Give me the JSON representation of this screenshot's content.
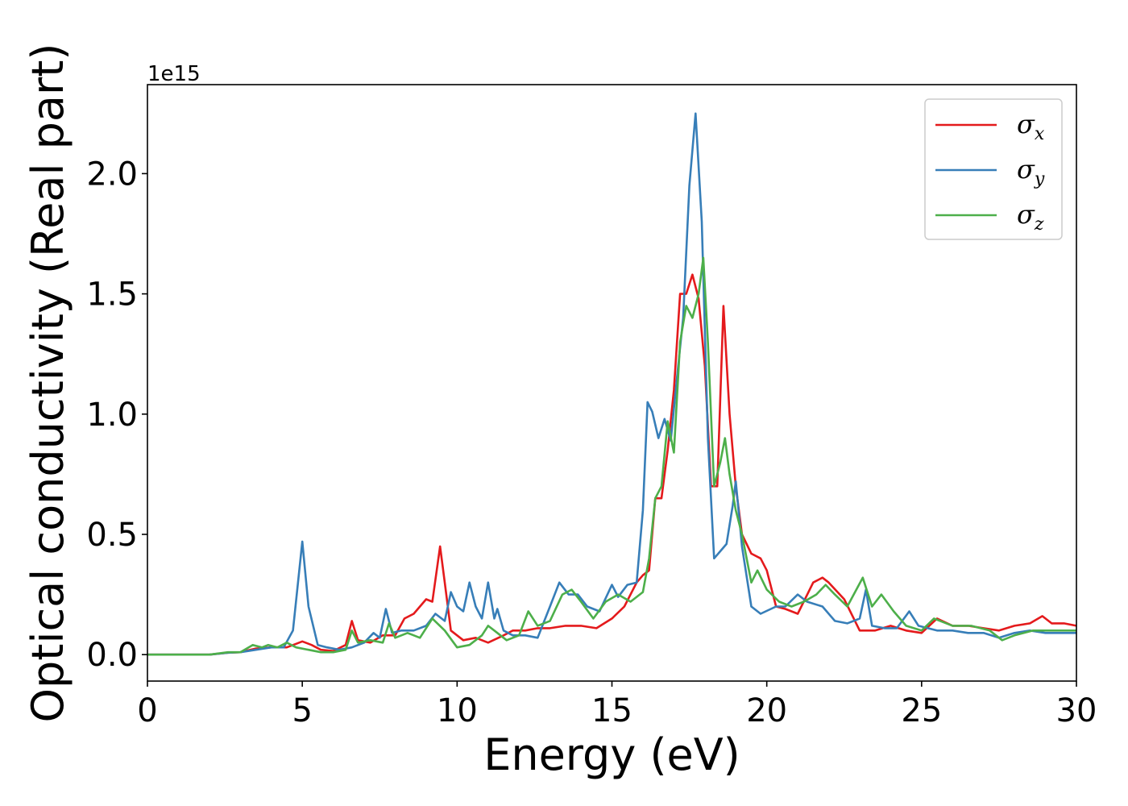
{
  "chart_data": {
    "type": "line",
    "xlabel": "Energy (eV)",
    "ylabel": "Optical conductivity (Real part)",
    "y_offset_text": "1e15",
    "xlim": [
      0,
      30
    ],
    "ylim": [
      -0.11,
      2.37
    ],
    "x_ticks": [
      0,
      5,
      10,
      15,
      20,
      25,
      30
    ],
    "y_ticks": [
      0.0,
      0.5,
      1.0,
      1.5,
      2.0
    ],
    "x_tick_labels": [
      "0",
      "5",
      "10",
      "15",
      "20",
      "25",
      "30"
    ],
    "y_tick_labels": [
      "0.0",
      "0.5",
      "1.0",
      "1.5",
      "2.0"
    ],
    "grid": false,
    "legend_position": "top-right",
    "series": [
      {
        "name": "σ_x",
        "legend_base": "σ",
        "legend_sub": "x",
        "color": "#e41a1c",
        "points": [
          [
            0,
            0
          ],
          [
            2,
            0
          ],
          [
            2.6,
            0.008
          ],
          [
            3,
            0.01
          ],
          [
            3.5,
            0.025
          ],
          [
            4,
            0.03
          ],
          [
            4.5,
            0.03
          ],
          [
            4.8,
            0.045
          ],
          [
            5.0,
            0.055
          ],
          [
            5.3,
            0.04
          ],
          [
            5.6,
            0.02
          ],
          [
            6,
            0.015
          ],
          [
            6.4,
            0.04
          ],
          [
            6.6,
            0.14
          ],
          [
            6.8,
            0.06
          ],
          [
            7.2,
            0.05
          ],
          [
            7.6,
            0.08
          ],
          [
            8,
            0.08
          ],
          [
            8.3,
            0.15
          ],
          [
            8.6,
            0.17
          ],
          [
            9,
            0.23
          ],
          [
            9.2,
            0.22
          ],
          [
            9.45,
            0.45
          ],
          [
            9.6,
            0.3
          ],
          [
            9.8,
            0.1
          ],
          [
            10.2,
            0.06
          ],
          [
            10.6,
            0.07
          ],
          [
            11,
            0.05
          ],
          [
            11.5,
            0.08
          ],
          [
            11.8,
            0.1
          ],
          [
            12.2,
            0.1
          ],
          [
            12.6,
            0.11
          ],
          [
            13,
            0.11
          ],
          [
            13.5,
            0.12
          ],
          [
            14,
            0.12
          ],
          [
            14.5,
            0.11
          ],
          [
            15,
            0.15
          ],
          [
            15.4,
            0.2
          ],
          [
            15.8,
            0.3
          ],
          [
            16.0,
            0.33
          ],
          [
            16.2,
            0.35
          ],
          [
            16.4,
            0.65
          ],
          [
            16.6,
            0.65
          ],
          [
            16.8,
            0.85
          ],
          [
            17.0,
            1.1
          ],
          [
            17.2,
            1.5
          ],
          [
            17.4,
            1.5
          ],
          [
            17.6,
            1.58
          ],
          [
            17.8,
            1.48
          ],
          [
            18.0,
            1.2
          ],
          [
            18.2,
            0.7
          ],
          [
            18.4,
            0.7
          ],
          [
            18.6,
            1.45
          ],
          [
            18.8,
            1.0
          ],
          [
            19.0,
            0.7
          ],
          [
            19.2,
            0.5
          ],
          [
            19.5,
            0.42
          ],
          [
            19.8,
            0.4
          ],
          [
            20,
            0.35
          ],
          [
            20.3,
            0.2
          ],
          [
            20.6,
            0.19
          ],
          [
            21,
            0.17
          ],
          [
            21.5,
            0.3
          ],
          [
            21.8,
            0.32
          ],
          [
            22,
            0.3
          ],
          [
            22.5,
            0.23
          ],
          [
            23,
            0.1
          ],
          [
            23.5,
            0.1
          ],
          [
            24,
            0.12
          ],
          [
            24.5,
            0.1
          ],
          [
            25,
            0.09
          ],
          [
            25.5,
            0.15
          ],
          [
            26,
            0.12
          ],
          [
            26.5,
            0.12
          ],
          [
            27,
            0.11
          ],
          [
            27.5,
            0.1
          ],
          [
            28,
            0.12
          ],
          [
            28.5,
            0.13
          ],
          [
            28.9,
            0.16
          ],
          [
            29.2,
            0.13
          ],
          [
            29.6,
            0.13
          ],
          [
            30,
            0.12
          ]
        ]
      },
      {
        "name": "σ_y",
        "legend_base": "σ",
        "legend_sub": "y",
        "color": "#377eb8",
        "points": [
          [
            0,
            0
          ],
          [
            2,
            0
          ],
          [
            2.6,
            0.008
          ],
          [
            3,
            0.01
          ],
          [
            3.5,
            0.02
          ],
          [
            4,
            0.03
          ],
          [
            4.4,
            0.03
          ],
          [
            4.7,
            0.1
          ],
          [
            5.0,
            0.47
          ],
          [
            5.2,
            0.2
          ],
          [
            5.5,
            0.04
          ],
          [
            5.8,
            0.03
          ],
          [
            6.2,
            0.02
          ],
          [
            6.6,
            0.03
          ],
          [
            7,
            0.05
          ],
          [
            7.3,
            0.09
          ],
          [
            7.5,
            0.07
          ],
          [
            7.7,
            0.19
          ],
          [
            7.9,
            0.09
          ],
          [
            8.2,
            0.1
          ],
          [
            8.6,
            0.1
          ],
          [
            9,
            0.12
          ],
          [
            9.3,
            0.17
          ],
          [
            9.6,
            0.14
          ],
          [
            9.8,
            0.26
          ],
          [
            10.0,
            0.2
          ],
          [
            10.2,
            0.18
          ],
          [
            10.4,
            0.3
          ],
          [
            10.6,
            0.2
          ],
          [
            10.8,
            0.15
          ],
          [
            11.0,
            0.3
          ],
          [
            11.2,
            0.15
          ],
          [
            11.3,
            0.19
          ],
          [
            11.5,
            0.1
          ],
          [
            11.8,
            0.08
          ],
          [
            12.2,
            0.08
          ],
          [
            12.6,
            0.07
          ],
          [
            13,
            0.2
          ],
          [
            13.3,
            0.3
          ],
          [
            13.6,
            0.25
          ],
          [
            13.9,
            0.25
          ],
          [
            14.2,
            0.2
          ],
          [
            14.6,
            0.18
          ],
          [
            15,
            0.29
          ],
          [
            15.2,
            0.24
          ],
          [
            15.5,
            0.29
          ],
          [
            15.8,
            0.3
          ],
          [
            16.0,
            0.6
          ],
          [
            16.15,
            1.05
          ],
          [
            16.3,
            1.01
          ],
          [
            16.5,
            0.9
          ],
          [
            16.7,
            0.98
          ],
          [
            16.9,
            0.89
          ],
          [
            17.1,
            1.15
          ],
          [
            17.3,
            1.4
          ],
          [
            17.5,
            1.95
          ],
          [
            17.7,
            2.25
          ],
          [
            17.9,
            1.8
          ],
          [
            18.1,
            0.9
          ],
          [
            18.3,
            0.4
          ],
          [
            18.5,
            0.43
          ],
          [
            18.7,
            0.46
          ],
          [
            18.9,
            0.62
          ],
          [
            19.0,
            0.72
          ],
          [
            19.2,
            0.45
          ],
          [
            19.5,
            0.2
          ],
          [
            19.8,
            0.17
          ],
          [
            20.3,
            0.2
          ],
          [
            20.6,
            0.2
          ],
          [
            21,
            0.25
          ],
          [
            21.3,
            0.22
          ],
          [
            21.8,
            0.2
          ],
          [
            22.2,
            0.14
          ],
          [
            22.6,
            0.13
          ],
          [
            23,
            0.15
          ],
          [
            23.2,
            0.27
          ],
          [
            23.4,
            0.12
          ],
          [
            23.8,
            0.11
          ],
          [
            24.2,
            0.11
          ],
          [
            24.6,
            0.18
          ],
          [
            24.9,
            0.12
          ],
          [
            25.5,
            0.1
          ],
          [
            26,
            0.1
          ],
          [
            26.5,
            0.09
          ],
          [
            27,
            0.09
          ],
          [
            27.5,
            0.07
          ],
          [
            28,
            0.09
          ],
          [
            28.5,
            0.1
          ],
          [
            29,
            0.09
          ],
          [
            29.5,
            0.09
          ],
          [
            30,
            0.09
          ]
        ]
      },
      {
        "name": "σ_z",
        "legend_base": "σ",
        "legend_sub": "z",
        "color": "#4daf4a",
        "points": [
          [
            0,
            0
          ],
          [
            2,
            0
          ],
          [
            2.6,
            0.01
          ],
          [
            3,
            0.01
          ],
          [
            3.4,
            0.04
          ],
          [
            3.7,
            0.03
          ],
          [
            3.9,
            0.04
          ],
          [
            4.2,
            0.03
          ],
          [
            4.5,
            0.05
          ],
          [
            4.8,
            0.03
          ],
          [
            5.2,
            0.02
          ],
          [
            5.6,
            0.01
          ],
          [
            6,
            0.01
          ],
          [
            6.4,
            0.02
          ],
          [
            6.6,
            0.1
          ],
          [
            6.8,
            0.05
          ],
          [
            7.2,
            0.06
          ],
          [
            7.6,
            0.05
          ],
          [
            7.8,
            0.13
          ],
          [
            8,
            0.07
          ],
          [
            8.4,
            0.09
          ],
          [
            8.8,
            0.07
          ],
          [
            9.2,
            0.15
          ],
          [
            9.6,
            0.1
          ],
          [
            10,
            0.03
          ],
          [
            10.4,
            0.04
          ],
          [
            10.8,
            0.08
          ],
          [
            11,
            0.12
          ],
          [
            11.2,
            0.1
          ],
          [
            11.6,
            0.06
          ],
          [
            12,
            0.08
          ],
          [
            12.3,
            0.18
          ],
          [
            12.6,
            0.12
          ],
          [
            13,
            0.14
          ],
          [
            13.4,
            0.25
          ],
          [
            13.7,
            0.27
          ],
          [
            14,
            0.22
          ],
          [
            14.4,
            0.15
          ],
          [
            14.8,
            0.22
          ],
          [
            15.2,
            0.25
          ],
          [
            15.6,
            0.22
          ],
          [
            16,
            0.26
          ],
          [
            16.2,
            0.4
          ],
          [
            16.4,
            0.65
          ],
          [
            16.6,
            0.7
          ],
          [
            16.8,
            0.97
          ],
          [
            17.0,
            0.84
          ],
          [
            17.2,
            1.3
          ],
          [
            17.4,
            1.45
          ],
          [
            17.6,
            1.4
          ],
          [
            17.8,
            1.5
          ],
          [
            17.95,
            1.65
          ],
          [
            18.1,
            1.3
          ],
          [
            18.3,
            0.7
          ],
          [
            18.5,
            0.8
          ],
          [
            18.65,
            0.9
          ],
          [
            18.8,
            0.75
          ],
          [
            19.0,
            0.6
          ],
          [
            19.2,
            0.5
          ],
          [
            19.5,
            0.3
          ],
          [
            19.7,
            0.35
          ],
          [
            20,
            0.27
          ],
          [
            20.4,
            0.22
          ],
          [
            20.8,
            0.2
          ],
          [
            21.2,
            0.22
          ],
          [
            21.6,
            0.25
          ],
          [
            21.9,
            0.29
          ],
          [
            22.2,
            0.25
          ],
          [
            22.6,
            0.2
          ],
          [
            23.1,
            0.32
          ],
          [
            23.4,
            0.2
          ],
          [
            23.7,
            0.25
          ],
          [
            24.1,
            0.18
          ],
          [
            24.5,
            0.12
          ],
          [
            25,
            0.1
          ],
          [
            25.4,
            0.15
          ],
          [
            26,
            0.12
          ],
          [
            26.6,
            0.12
          ],
          [
            27.2,
            0.1
          ],
          [
            27.6,
            0.06
          ],
          [
            28,
            0.08
          ],
          [
            28.6,
            0.1
          ],
          [
            29.2,
            0.1
          ],
          [
            30,
            0.1
          ]
        ]
      }
    ]
  }
}
